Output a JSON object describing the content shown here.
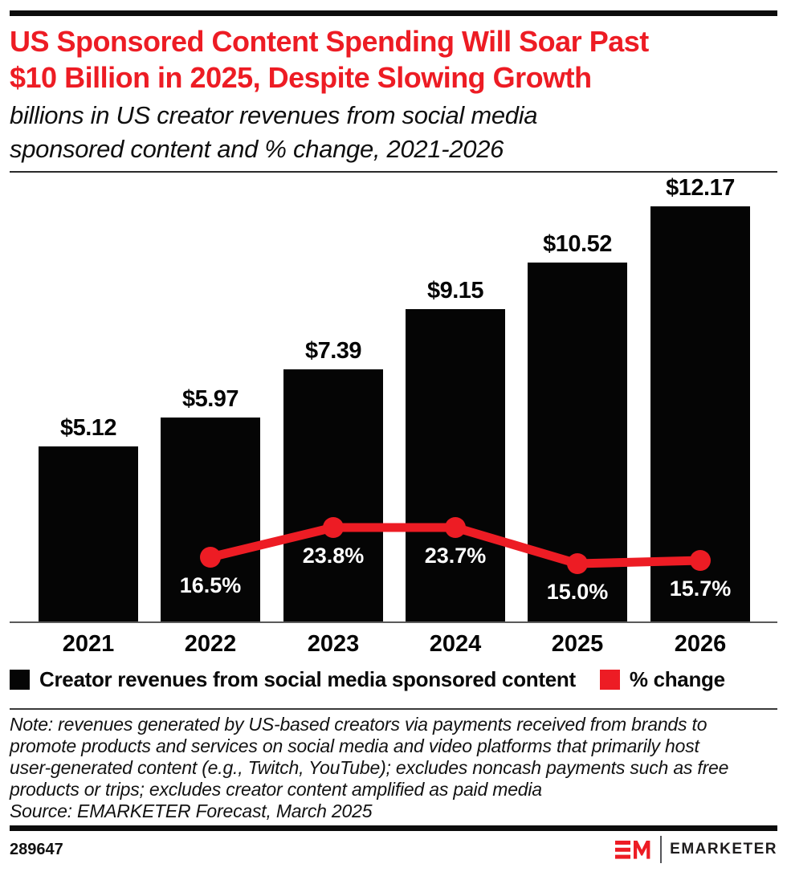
{
  "colors": {
    "accent_red": "#ED1C24",
    "bar_black": "#050505",
    "pct_label_white": "#FFFFFF",
    "axis_line_gray": "#5A5A5A",
    "rule_black": "#0D0D0D"
  },
  "header": {
    "title_lines": [
      "US Sponsored Content Spending Will Soar Past",
      "$10 Billion in 2025, Despite Slowing Growth"
    ],
    "subtitle_lines": [
      "billions in US creator revenues from social media",
      "sponsored content and % change, 2021-2026"
    ]
  },
  "chart_data": {
    "type": "bar",
    "title": "US Sponsored Content Spending Will Soar Past $10 Billion in 2025, Despite Slowing Growth",
    "subtitle": "billions in US creator revenues from social media sponsored content and % change, 2021-2026",
    "categories": [
      "2021",
      "2022",
      "2023",
      "2024",
      "2025",
      "2026"
    ],
    "series": [
      {
        "name": "Creator revenues from social media sponsored content",
        "type": "bar",
        "unit": "USD billions",
        "values": [
          5.12,
          5.97,
          7.39,
          9.15,
          10.52,
          12.17
        ],
        "data_labels": [
          "$5.12",
          "$5.97",
          "$7.39",
          "$9.15",
          "$10.52",
          "$12.17"
        ],
        "color": "#050505"
      },
      {
        "name": "% change",
        "type": "line",
        "unit": "percent",
        "values": [
          null,
          16.5,
          23.8,
          23.7,
          15.0,
          15.7
        ],
        "data_labels": [
          null,
          "16.5%",
          "23.8%",
          "23.7%",
          "15.0%",
          "15.7%"
        ],
        "color": "#ED1C24"
      }
    ],
    "xlabel": "",
    "ylabel": "",
    "ylim": [
      0,
      13.2
    ],
    "grid": false,
    "legend_position": "bottom"
  },
  "legend": {
    "items": [
      {
        "label": "Creator revenues from social media sponsored content",
        "color": "#050505"
      },
      {
        "label": "% change",
        "color": "#ED1C24"
      }
    ]
  },
  "notes": {
    "note_lines": [
      "Note: revenues generated by US-based creators via payments received from brands to",
      "promote products and services on social media and video platforms that primarily host",
      "user-generated content (e.g., Twitch, YouTube); excludes noncash payments such as free",
      "products or trips; excludes creator content amplified as paid media"
    ],
    "source": "Source: EMARKETER Forecast, March 2025"
  },
  "footer": {
    "chart_id": "289647",
    "brand_name": "EMARKETER",
    "logo_mark": "EM-monogram"
  }
}
